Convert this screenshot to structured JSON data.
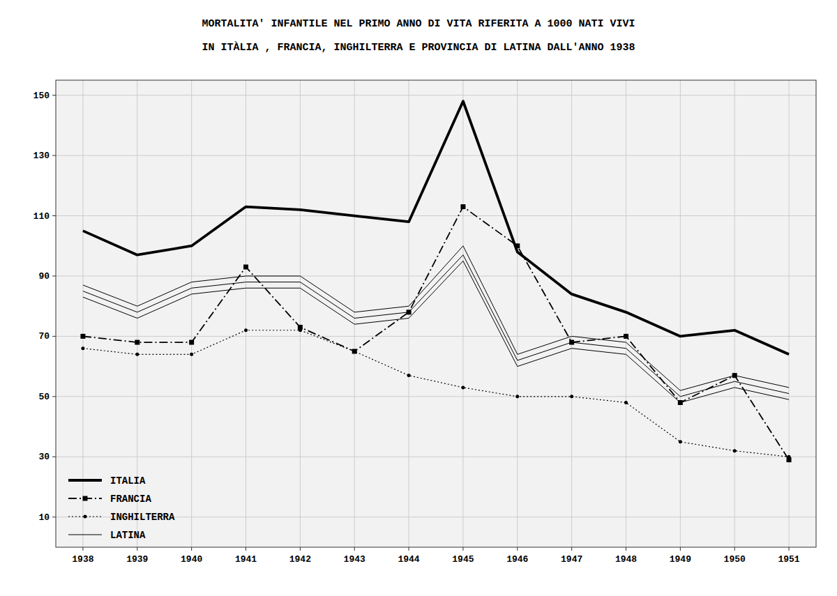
{
  "chart_data": {
    "type": "line",
    "title": "MORTALITA'  INFANTILE  NEL  PRIMO  ANNO  DI  VITA   RIFERITA  A  1000  NATI  VIVI",
    "subtitle": "IN  ITÀLIA , FRANCIA, INGHILTERRA  E  PROVINCIA   DI  LATINA  DALL'ANNO   1938",
    "x": [
      1938,
      1939,
      1940,
      1941,
      1942,
      1943,
      1944,
      1945,
      1946,
      1947,
      1948,
      1949,
      1950,
      1951
    ],
    "xlim": [
      1937.5,
      1951.5
    ],
    "xticks": [
      1938,
      1939,
      1940,
      1941,
      1942,
      1943,
      1944,
      1945,
      1946,
      1947,
      1948,
      1949,
      1950,
      1951
    ],
    "ylim": [
      0,
      155
    ],
    "yticks": [
      10,
      30,
      50,
      70,
      90,
      110,
      130,
      150
    ],
    "grid": true,
    "legend": "lower left",
    "series": [
      {
        "name": "ITALIA",
        "color": "#000000",
        "line_style": "solid",
        "values": [
          105,
          97,
          100,
          113,
          112,
          110,
          108,
          148,
          98,
          84,
          78,
          70,
          72,
          64
        ]
      },
      {
        "name": "FRANCIA",
        "color": "#000000",
        "line_style": "dashdot",
        "marker": "square",
        "values": [
          70,
          68,
          68,
          93,
          73,
          65,
          78,
          113,
          100,
          68,
          70,
          48,
          57,
          29
        ]
      },
      {
        "name": "INGHILTERRA",
        "color": "#000000",
        "line_style": "dotted",
        "marker": "point",
        "values": [
          66,
          64,
          64,
          72,
          72,
          65,
          57,
          53,
          50,
          50,
          48,
          35,
          32,
          30
        ]
      },
      {
        "name": "LATINA",
        "color": "#000000",
        "line_style": "solid",
        "values": [
          87,
          80,
          88,
          90,
          90,
          78,
          80,
          100,
          64,
          70,
          68,
          52,
          57,
          53
        ]
      },
      {
        "name": "LATINA",
        "color": "#000000",
        "line_style": "solid",
        "values": [
          85,
          78,
          86,
          88,
          88,
          76,
          78,
          97,
          62,
          68,
          66,
          50,
          55,
          51
        ]
      },
      {
        "name": "LATINA",
        "color": "#000000",
        "line_style": "solid",
        "values": [
          83,
          76,
          84,
          86,
          86,
          74,
          76,
          95,
          60,
          66,
          64,
          48,
          53,
          49
        ]
      }
    ]
  }
}
